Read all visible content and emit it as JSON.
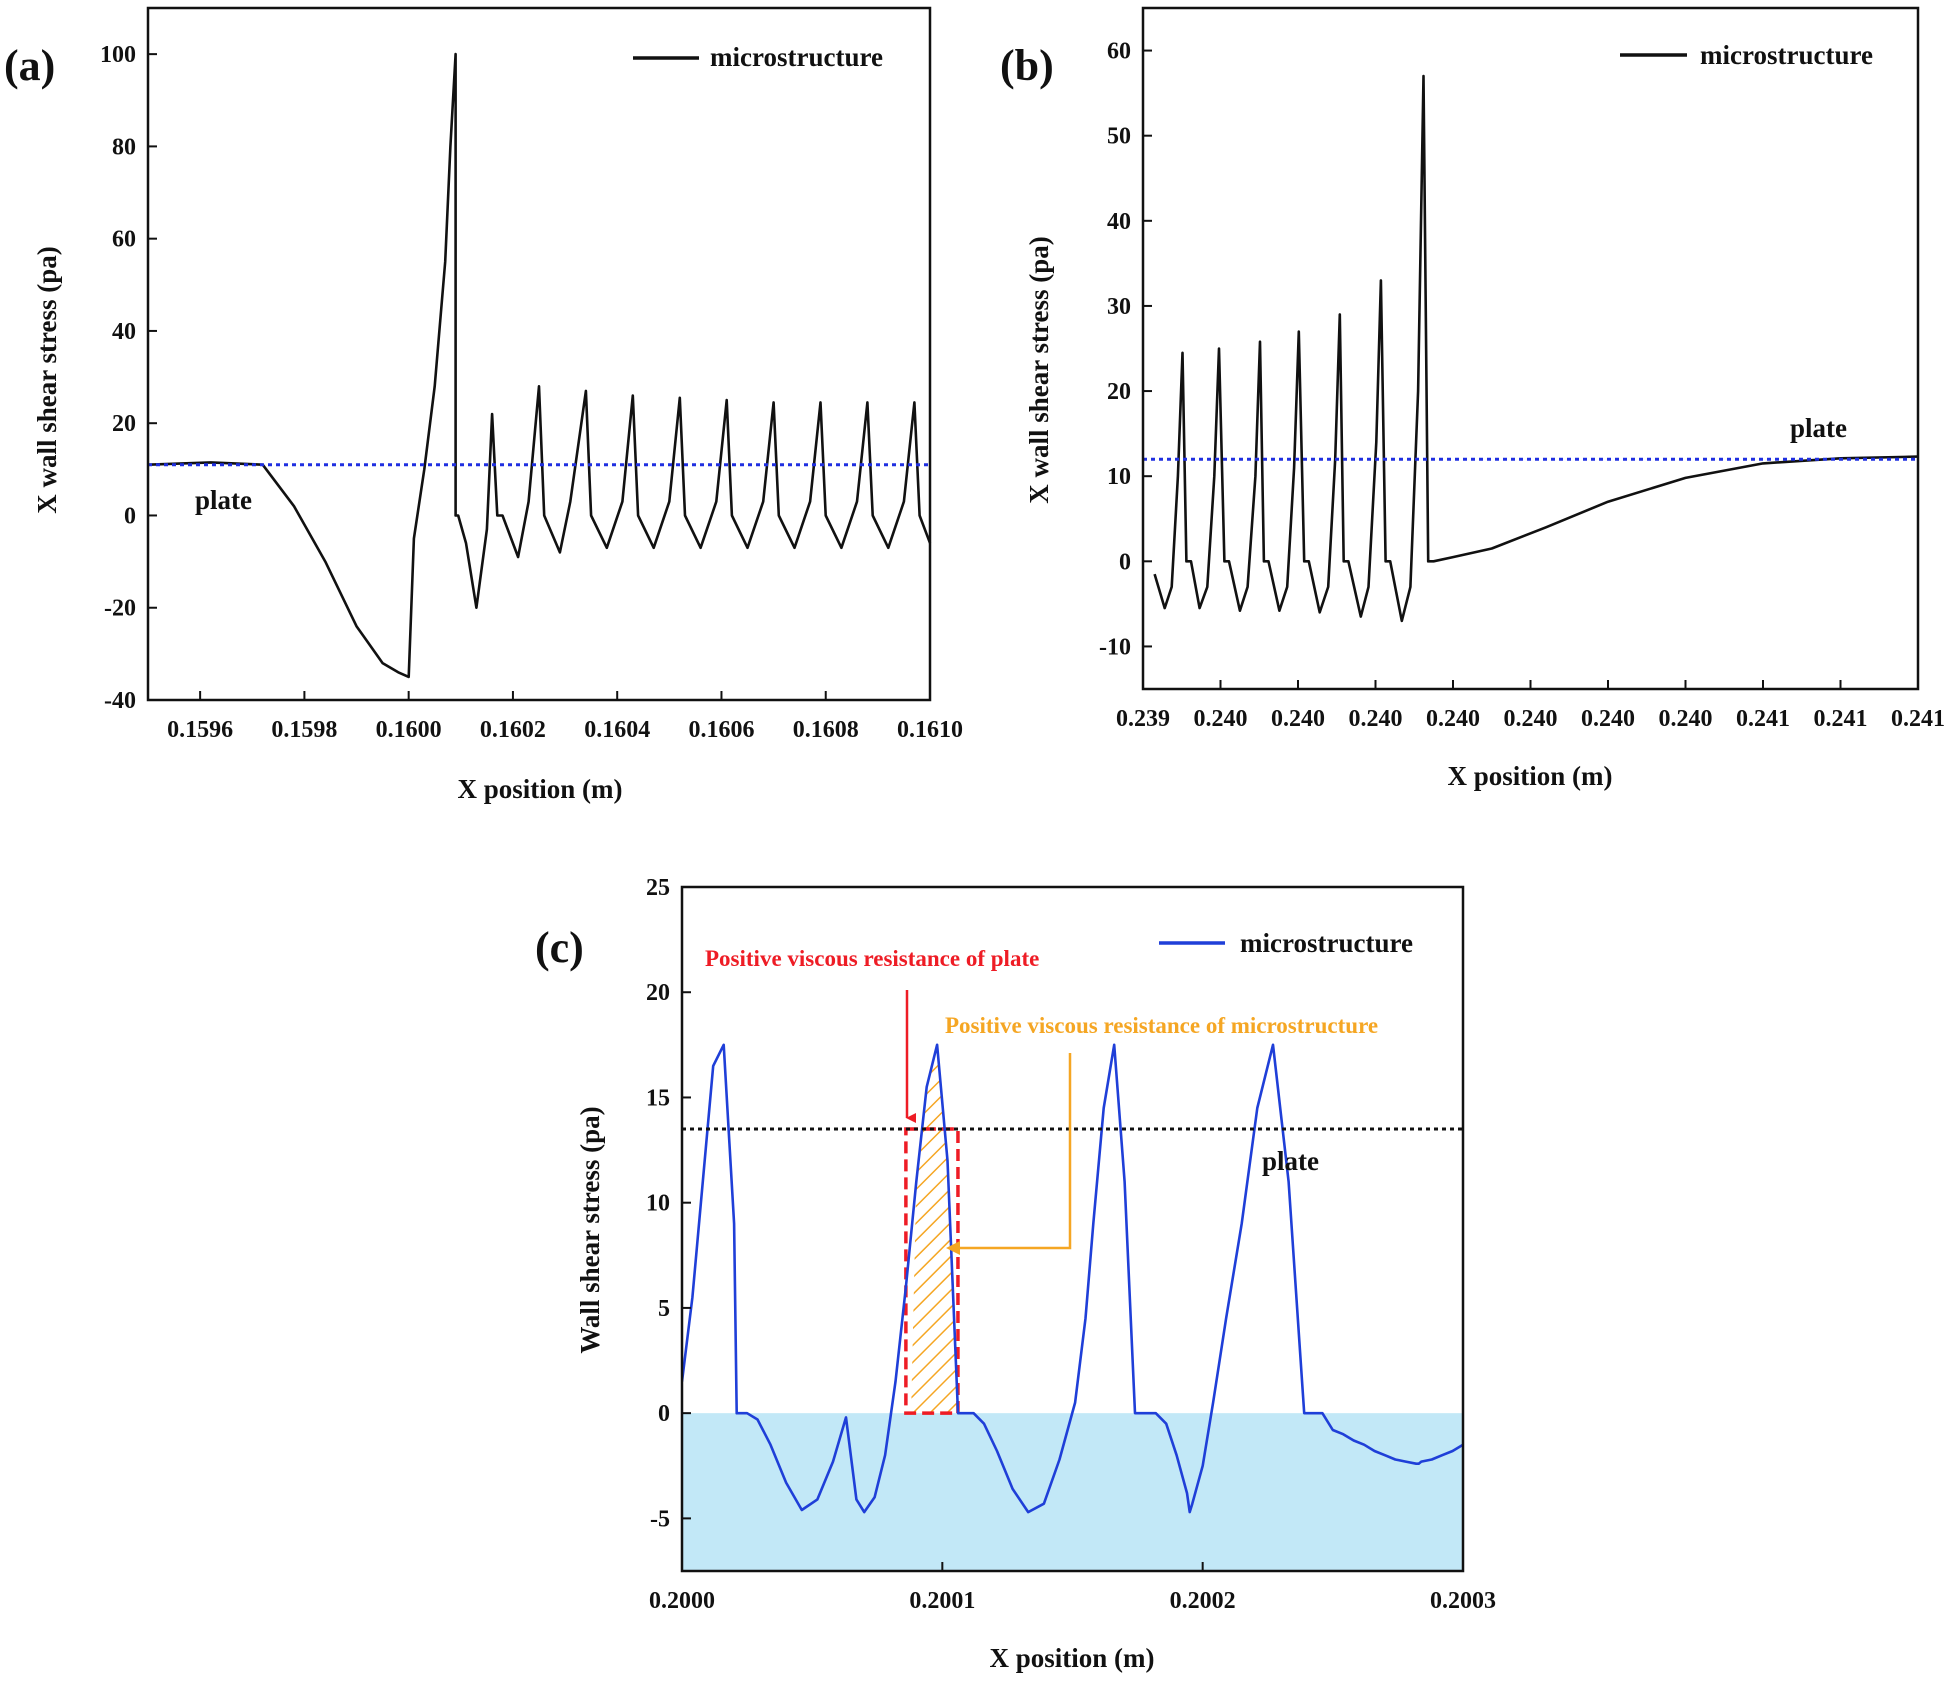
{
  "chart_data": [
    {
      "type": "line",
      "panel_label": "(a)",
      "xlabel": "X position (m)",
      "ylabel": "X wall shear stress (pa)",
      "xlim": [
        0.1595,
        0.161
      ],
      "ylim": [
        -40,
        110
      ],
      "x_ticks": [
        0.1596,
        0.1598,
        0.16,
        0.1602,
        0.1604,
        0.1606,
        0.1608,
        0.161
      ],
      "x_tick_labels": [
        "0.1596",
        "0.1598",
        "0.1600",
        "0.1602",
        "0.1604",
        "0.1606",
        "0.1608",
        "0.1610"
      ],
      "y_ticks": [
        -40,
        -20,
        0,
        20,
        40,
        60,
        80,
        100
      ],
      "y_tick_labels": [
        "-40",
        "-20",
        "0",
        "20",
        "40",
        "60",
        "80",
        "100"
      ],
      "legend": [
        "microstructure"
      ],
      "annotations": [
        {
          "text": "plate",
          "x": 0.15961,
          "y": 3
        }
      ],
      "series": [
        {
          "name": "microstructure",
          "color": "#111111",
          "x": [
            0.1595,
            0.15962,
            0.15972,
            0.15978,
            0.15984,
            0.1599,
            0.15995,
            0.15998,
            0.16,
            0.16001,
            0.16003,
            0.16005,
            0.16007,
            0.16008,
            0.16009,
            0.16009,
            0.160095,
            0.16011,
            0.16013,
            0.16015,
            0.16016,
            0.16017,
            0.16018,
            0.16021,
            0.16023,
            0.16025,
            0.16026,
            0.16029,
            0.16031,
            0.16034,
            0.16035,
            0.16038,
            0.16041,
            0.16043,
            0.16044,
            0.16047,
            0.1605,
            0.16052,
            0.16053,
            0.16056,
            0.16059,
            0.16061,
            0.16062,
            0.16065,
            0.16068,
            0.1607,
            0.16071,
            0.16074,
            0.16077,
            0.16079,
            0.1608,
            0.16083,
            0.16086,
            0.16088,
            0.16089,
            0.16092,
            0.16095,
            0.16097,
            0.16098,
            0.161
          ],
          "y": [
            11,
            11.5,
            11,
            2,
            -10,
            -24,
            -32,
            -34,
            -35,
            -5,
            10,
            28,
            55,
            80,
            100,
            0,
            0,
            -6,
            -20,
            -3,
            22,
            0,
            0,
            -9,
            3,
            28,
            0,
            -8,
            3,
            27,
            0,
            -7,
            3,
            26,
            0,
            -7,
            3,
            25.5,
            0,
            -7,
            3,
            25,
            0,
            -7,
            3,
            24.5,
            0,
            -7,
            3,
            24.5,
            0,
            -7,
            3,
            24.5,
            0,
            -7,
            3,
            24.5,
            0,
            -6
          ]
        },
        {
          "name": "plate",
          "color": "#1f2fe0",
          "dashed": true,
          "x": [
            0.1595,
            0.161
          ],
          "y": [
            11,
            11
          ]
        }
      ]
    },
    {
      "type": "line",
      "panel_label": "(b)",
      "xlabel": "X position (m)",
      "ylabel": "X wall shear stress (pa)",
      "xlim": [
        0,
        100
      ],
      "ylim": [
        -15,
        65
      ],
      "x_ticks": [
        0,
        10,
        20,
        30,
        40,
        50,
        60,
        70,
        80,
        90,
        100
      ],
      "x_tick_labels": [
        "0.239",
        "0.240",
        "0.240",
        "0.240",
        "0.240",
        "0.240",
        "0.240",
        "0.240",
        "0.241",
        "0.241",
        "0.241"
      ],
      "y_ticks": [
        -10,
        0,
        10,
        20,
        30,
        40,
        50,
        60
      ],
      "y_tick_labels": [
        "-10",
        "0",
        "10",
        "20",
        "30",
        "40",
        "50",
        "60"
      ],
      "legend": [
        "microstructure"
      ],
      "annotations": [
        {
          "text": "plate",
          "x": 94,
          "y": 15
        }
      ],
      "series": [
        {
          "name": "microstructure",
          "color": "#111111",
          "x": [
            1.5,
            2.8,
            3.7,
            4.5,
            5.1,
            5.6,
            6.2,
            7.3,
            8.3,
            9.2,
            9.8,
            10.5,
            11.1,
            12.5,
            13.5,
            14.5,
            15.1,
            15.6,
            16.2,
            17.6,
            18.6,
            19.5,
            20.1,
            20.8,
            21.4,
            22.8,
            23.9,
            24.8,
            25.4,
            25.9,
            26.5,
            28.1,
            29.1,
            30.1,
            30.7,
            31.3,
            31.9,
            33.4,
            34.5,
            35.5,
            36.2,
            36.8,
            37.5,
            40,
            45,
            52,
            60,
            70,
            80,
            90,
            100
          ],
          "y": [
            -1.5,
            -5.5,
            -3,
            10,
            24.5,
            0,
            0,
            -5.5,
            -3,
            10,
            25,
            0,
            0,
            -5.8,
            -3,
            10,
            25.8,
            0,
            0,
            -5.8,
            -3,
            11,
            27,
            0,
            0,
            -6,
            -3,
            12,
            29,
            0,
            0,
            -6.5,
            -3,
            14,
            33,
            0,
            0,
            -7,
            -3,
            20,
            57,
            0,
            0,
            0.5,
            1.5,
            4,
            7,
            9.8,
            11.5,
            12.1,
            12.3
          ]
        },
        {
          "name": "plate",
          "color": "#1f2fe0",
          "dashed": true,
          "x": [
            0,
            100
          ],
          "y": [
            12,
            12
          ]
        }
      ]
    },
    {
      "type": "line",
      "panel_label": "(c)",
      "xlabel": "X position (m)",
      "ylabel": "Wall shear stress (pa)",
      "xlim": [
        0.2,
        0.2003
      ],
      "ylim": [
        -7.5,
        25
      ],
      "x_ticks": [
        0.2,
        0.2001,
        0.2002,
        0.2003
      ],
      "x_tick_labels": [
        "0.2000",
        "0.2001",
        "0.2002",
        "0.2003"
      ],
      "y_ticks": [
        -5,
        0,
        5,
        10,
        15,
        20,
        25
      ],
      "y_tick_labels": [
        "-5",
        "0",
        "5",
        "10",
        "15",
        "20",
        "25"
      ],
      "legend": [
        "microstructure"
      ],
      "annotations": [
        {
          "text": "plate",
          "x": 0.20022,
          "y": 11.5
        },
        {
          "text": "Positive viscous resistance of plate",
          "color": "#ee1c25"
        },
        {
          "text": "Positive viscous resistance of microstructure",
          "color": "#f5a623"
        }
      ],
      "shaded_region": {
        "y_from": -7.5,
        "y_to": 0,
        "color": "#c2e8f7"
      },
      "plate_region": {
        "x": [
          0.200086,
          0.200106
        ],
        "y": [
          0,
          13.5
        ],
        "color": "#ee1c25"
      },
      "microstructure_region": {
        "x": [
          0.200088,
          0.200106
        ],
        "y": [
          0,
          17.5
        ],
        "color": "#f5a623"
      },
      "series": [
        {
          "name": "microstructure",
          "color": "#1f3fd8",
          "x": [
            0.2,
            0.200004,
            0.200008,
            0.200012,
            0.200016,
            0.20002,
            0.200021,
            0.200022,
            0.200025,
            0.200029,
            0.200034,
            0.20004,
            0.200046,
            0.200052,
            0.200058,
            0.200063,
            0.200067,
            0.20007,
            0.200074,
            0.200078,
            0.200082,
            0.200086,
            0.20009,
            0.200094,
            0.200098,
            0.200102,
            0.200106,
            0.200107,
            0.200108,
            0.200112,
            0.200116,
            0.200121,
            0.200127,
            0.200133,
            0.200139,
            0.200145,
            0.200151,
            0.200155,
            0.200158,
            0.200162,
            0.200166,
            0.20017,
            0.200174,
            0.200178,
            0.200182,
            0.200186,
            0.20019,
            0.200194,
            0.200195,
            0.200196,
            0.2002,
            0.200204,
            0.200209,
            0.200215,
            0.200221,
            0.200227,
            0.200233,
            0.200239,
            0.200243,
            0.200246,
            0.20025,
            0.200254,
            0.200258,
            0.200262,
            0.200266,
            0.20027,
            0.200274,
            0.200278,
            0.200282,
            0.200283,
            0.200284,
            0.200288,
            0.200292,
            0.200296,
            0.2003
          ],
          "y": [
            1.5,
            5.5,
            11,
            16.5,
            17.5,
            9,
            0,
            0,
            0,
            -0.3,
            -1.5,
            -3.3,
            -4.6,
            -4.1,
            -2.3,
            -0.2,
            -4.1,
            -4.7,
            -4,
            -2,
            1.5,
            6,
            11,
            15.5,
            17.5,
            12,
            0,
            0,
            0,
            0,
            -0.5,
            -1.8,
            -3.6,
            -4.7,
            -4.3,
            -2.2,
            0.5,
            4.5,
            9,
            14.5,
            17.5,
            11,
            0,
            0,
            0,
            -0.5,
            -2,
            -3.8,
            -4.7,
            -4.3,
            -2.5,
            0.5,
            4.5,
            9,
            14.5,
            17.5,
            11,
            0,
            0,
            0,
            -0.8,
            -1,
            -1.3,
            -1.5,
            -1.8,
            -2,
            -2.2,
            -2.3,
            -2.4,
            -2.4,
            -2.3,
            -2.2,
            -2,
            -1.8,
            -1.5
          ]
        },
        {
          "name": "plate",
          "color": "#111111",
          "dashed": true,
          "x": [
            0.2,
            0.2003
          ],
          "y": [
            13.5,
            13.5
          ]
        }
      ]
    }
  ]
}
